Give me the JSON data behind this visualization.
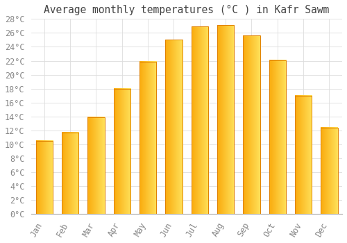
{
  "title": "Average monthly temperatures (°C ) in Kafr Sawm",
  "months": [
    "Jan",
    "Feb",
    "Mar",
    "Apr",
    "May",
    "Jun",
    "Jul",
    "Aug",
    "Sep",
    "Oct",
    "Nov",
    "Dec"
  ],
  "values": [
    10.5,
    11.7,
    13.9,
    18.0,
    21.9,
    25.0,
    26.9,
    27.1,
    25.6,
    22.1,
    17.0,
    12.4
  ],
  "bar_color": "#FFA500",
  "bar_edge_color": "#E08000",
  "background_color": "#FFFFFF",
  "grid_color": "#DDDDDD",
  "title_color": "#444444",
  "tick_label_color": "#888888",
  "ylim": [
    0,
    28
  ],
  "yticks": [
    0,
    2,
    4,
    6,
    8,
    10,
    12,
    14,
    16,
    18,
    20,
    22,
    24,
    26,
    28
  ],
  "title_fontsize": 10.5,
  "tick_fontsize": 8.5,
  "font_family": "monospace"
}
